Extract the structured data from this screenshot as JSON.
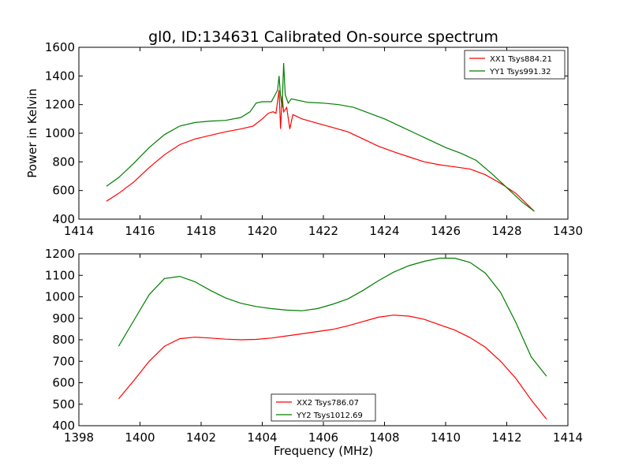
{
  "title": "gl0, ID:134631 Calibrated On-source spectrum",
  "colors": {
    "red": "#ff0000",
    "green": "#007f00"
  },
  "chart_data": [
    {
      "type": "line",
      "ylabel": "Power in Kelvin",
      "xlabel": "",
      "xlim": [
        1414,
        1430
      ],
      "ylim": [
        400,
        1600
      ],
      "xticks": [
        1414,
        1416,
        1418,
        1420,
        1422,
        1424,
        1426,
        1428,
        1430
      ],
      "yticks": [
        400,
        600,
        800,
        1000,
        1200,
        1400,
        1600
      ],
      "legend_position": "top-right",
      "series": [
        {
          "name": "XX1 Tsys884.21",
          "color": "#ff0000",
          "points": [
            [
              1414.9,
              525
            ],
            [
              1415.3,
              580
            ],
            [
              1415.8,
              660
            ],
            [
              1416.3,
              760
            ],
            [
              1416.8,
              850
            ],
            [
              1417.3,
              920
            ],
            [
              1417.8,
              960
            ],
            [
              1418.3,
              985
            ],
            [
              1418.8,
              1010
            ],
            [
              1419.3,
              1030
            ],
            [
              1419.7,
              1050
            ],
            [
              1420.0,
              1100
            ],
            [
              1420.2,
              1140
            ],
            [
              1420.35,
              1150
            ],
            [
              1420.45,
              1140
            ],
            [
              1420.55,
              1300
            ],
            [
              1420.6,
              1030
            ],
            [
              1420.65,
              1260
            ],
            [
              1420.7,
              1150
            ],
            [
              1420.8,
              1180
            ],
            [
              1420.9,
              1030
            ],
            [
              1421.0,
              1130
            ],
            [
              1421.3,
              1100
            ],
            [
              1421.8,
              1070
            ],
            [
              1422.3,
              1040
            ],
            [
              1422.8,
              1010
            ],
            [
              1423.3,
              960
            ],
            [
              1423.8,
              910
            ],
            [
              1424.3,
              870
            ],
            [
              1424.8,
              835
            ],
            [
              1425.3,
              800
            ],
            [
              1425.8,
              780
            ],
            [
              1426.3,
              765
            ],
            [
              1426.8,
              750
            ],
            [
              1427.3,
              710
            ],
            [
              1427.8,
              650
            ],
            [
              1428.3,
              580
            ],
            [
              1428.9,
              455
            ]
          ]
        },
        {
          "name": "YY1 Tsys991.32",
          "color": "#007f00",
          "points": [
            [
              1414.9,
              630
            ],
            [
              1415.3,
              690
            ],
            [
              1415.8,
              790
            ],
            [
              1416.3,
              900
            ],
            [
              1416.8,
              990
            ],
            [
              1417.3,
              1050
            ],
            [
              1417.8,
              1075
            ],
            [
              1418.3,
              1085
            ],
            [
              1418.8,
              1090
            ],
            [
              1419.3,
              1110
            ],
            [
              1419.6,
              1150
            ],
            [
              1419.8,
              1210
            ],
            [
              1420.0,
              1220
            ],
            [
              1420.3,
              1220
            ],
            [
              1420.5,
              1300
            ],
            [
              1420.55,
              1400
            ],
            [
              1420.6,
              1260
            ],
            [
              1420.65,
              1180
            ],
            [
              1420.7,
              1490
            ],
            [
              1420.75,
              1270
            ],
            [
              1420.85,
              1210
            ],
            [
              1420.95,
              1240
            ],
            [
              1421.5,
              1215
            ],
            [
              1422.0,
              1210
            ],
            [
              1422.5,
              1200
            ],
            [
              1423.0,
              1180
            ],
            [
              1423.5,
              1140
            ],
            [
              1424.0,
              1100
            ],
            [
              1424.5,
              1050
            ],
            [
              1425.0,
              1000
            ],
            [
              1425.5,
              950
            ],
            [
              1426.0,
              900
            ],
            [
              1426.5,
              860
            ],
            [
              1427.0,
              810
            ],
            [
              1427.5,
              720
            ],
            [
              1428.0,
              620
            ],
            [
              1428.5,
              520
            ],
            [
              1428.9,
              455
            ]
          ]
        }
      ]
    },
    {
      "type": "line",
      "ylabel": "",
      "xlabel": "Frequency (MHz)",
      "xlim": [
        1398,
        1414
      ],
      "ylim": [
        400,
        1200
      ],
      "xticks": [
        1398,
        1400,
        1402,
        1404,
        1406,
        1408,
        1410,
        1412,
        1414
      ],
      "yticks": [
        400,
        500,
        600,
        700,
        800,
        900,
        1000,
        1100,
        1200
      ],
      "legend_position": "bottom-center",
      "series": [
        {
          "name": "XX2 Tsys786.07",
          "color": "#ff0000",
          "points": [
            [
              1399.3,
              525
            ],
            [
              1399.8,
              610
            ],
            [
              1400.3,
              700
            ],
            [
              1400.8,
              770
            ],
            [
              1401.3,
              805
            ],
            [
              1401.8,
              812
            ],
            [
              1402.3,
              808
            ],
            [
              1402.8,
              803
            ],
            [
              1403.3,
              800
            ],
            [
              1403.8,
              802
            ],
            [
              1404.3,
              808
            ],
            [
              1404.8,
              818
            ],
            [
              1405.3,
              828
            ],
            [
              1405.8,
              838
            ],
            [
              1406.3,
              848
            ],
            [
              1406.8,
              865
            ],
            [
              1407.3,
              885
            ],
            [
              1407.8,
              905
            ],
            [
              1408.3,
              915
            ],
            [
              1408.8,
              910
            ],
            [
              1409.3,
              895
            ],
            [
              1409.8,
              870
            ],
            [
              1410.3,
              845
            ],
            [
              1410.8,
              810
            ],
            [
              1411.3,
              765
            ],
            [
              1411.8,
              700
            ],
            [
              1412.3,
              620
            ],
            [
              1412.8,
              520
            ],
            [
              1413.3,
              430
            ]
          ]
        },
        {
          "name": "YY2 Tsys1012.69",
          "color": "#007f00",
          "points": [
            [
              1399.3,
              770
            ],
            [
              1399.8,
              890
            ],
            [
              1400.3,
              1010
            ],
            [
              1400.8,
              1085
            ],
            [
              1401.3,
              1095
            ],
            [
              1401.8,
              1070
            ],
            [
              1402.3,
              1030
            ],
            [
              1402.8,
              995
            ],
            [
              1403.3,
              970
            ],
            [
              1403.8,
              955
            ],
            [
              1404.3,
              945
            ],
            [
              1404.8,
              938
            ],
            [
              1405.3,
              935
            ],
            [
              1405.8,
              945
            ],
            [
              1406.3,
              965
            ],
            [
              1406.8,
              990
            ],
            [
              1407.3,
              1030
            ],
            [
              1407.8,
              1075
            ],
            [
              1408.3,
              1115
            ],
            [
              1408.8,
              1145
            ],
            [
              1409.3,
              1165
            ],
            [
              1409.8,
              1180
            ],
            [
              1410.3,
              1180
            ],
            [
              1410.8,
              1160
            ],
            [
              1411.3,
              1110
            ],
            [
              1411.8,
              1020
            ],
            [
              1412.3,
              880
            ],
            [
              1412.8,
              720
            ],
            [
              1413.3,
              630
            ]
          ]
        }
      ]
    }
  ]
}
